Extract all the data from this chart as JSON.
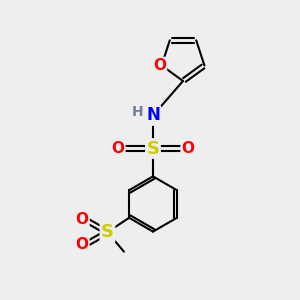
{
  "background_color": "#eeeeee",
  "atom_colors": {
    "C": "#000000",
    "H": "#708090",
    "N": "#0000ff",
    "O": "#ff0000",
    "S": "#cccc00",
    "bond": "#000000"
  },
  "bond_lw": 1.5,
  "figsize": [
    3.0,
    3.0
  ],
  "dpi": 100
}
